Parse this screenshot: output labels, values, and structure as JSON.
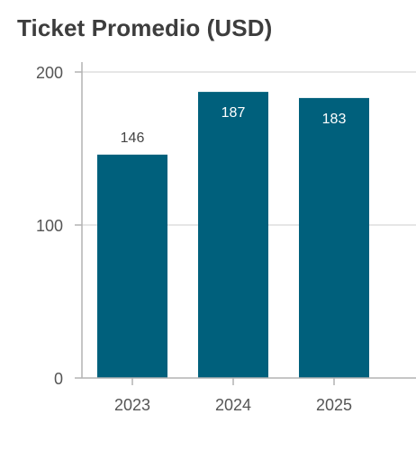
{
  "chart_data": {
    "type": "bar",
    "title": "Ticket Promedio (USD)",
    "categories": [
      "2023",
      "2024",
      "2025"
    ],
    "values": [
      146,
      187,
      183
    ],
    "ylim": [
      0,
      200
    ],
    "yticks": [
      0,
      100,
      200
    ],
    "xlabel": "",
    "ylabel": "",
    "grid": true,
    "legend": "none",
    "colors": {
      "bar": "#00607c",
      "grid": "#dddddd",
      "axis": "#b3b3b3",
      "label_outside": "#444444",
      "label_inside": "#ffffff"
    }
  }
}
